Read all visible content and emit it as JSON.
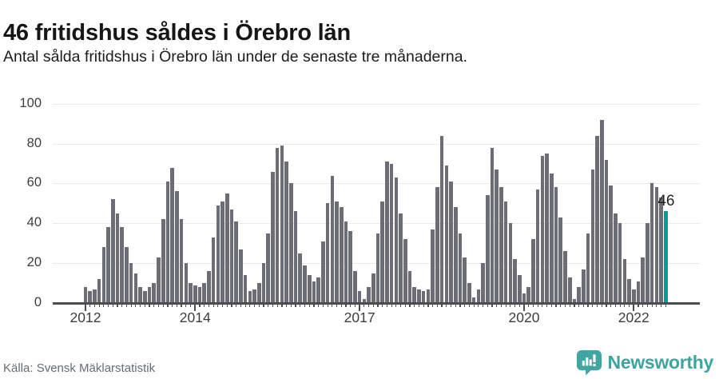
{
  "header": {
    "title": "46 fritidshus såldes i Örebro län",
    "subtitle": "Antal sålda fritidshus i Örebro län under de senaste tre månaderna."
  },
  "chart_data": {
    "type": "bar",
    "title": "46 fritidshus såldes i Örebro län",
    "subtitle": "Antal sålda fritidshus i Örebro län under de senaste tre månaderna.",
    "x_unit": "month",
    "start_month": "2012-01",
    "end_month": "2022-08",
    "ylim": [
      0,
      100
    ],
    "grid": true,
    "y_ticks": [
      0,
      20,
      40,
      60,
      80,
      100
    ],
    "x_ticks": [
      {
        "label": "2012",
        "month_index": 0
      },
      {
        "label": "2014",
        "month_index": 24
      },
      {
        "label": "2017",
        "month_index": 60
      },
      {
        "label": "2020",
        "month_index": 96
      },
      {
        "label": "2022",
        "month_index": 120
      }
    ],
    "values": [
      8,
      6,
      7,
      12,
      28,
      38,
      52,
      45,
      38,
      28,
      20,
      15,
      8,
      6,
      8,
      10,
      23,
      42,
      61,
      68,
      56,
      42,
      20,
      10,
      9,
      8,
      10,
      16,
      33,
      49,
      51,
      55,
      47,
      41,
      27,
      14,
      6,
      7,
      10,
      20,
      35,
      66,
      78,
      79,
      71,
      60,
      46,
      25,
      19,
      14,
      11,
      13,
      31,
      50,
      64,
      51,
      48,
      41,
      36,
      16,
      6,
      2,
      8,
      15,
      35,
      51,
      71,
      70,
      63,
      45,
      32,
      16,
      8,
      7,
      6,
      7,
      37,
      58,
      84,
      69,
      61,
      48,
      35,
      23,
      10,
      3,
      7,
      20,
      54,
      78,
      67,
      58,
      51,
      40,
      22,
      14,
      5,
      8,
      32,
      57,
      74,
      75,
      65,
      58,
      43,
      26,
      13,
      2,
      8,
      17,
      35,
      67,
      84,
      92,
      72,
      59,
      45,
      40,
      22,
      12,
      7,
      11,
      23,
      40,
      60,
      58,
      53,
      46
    ],
    "highlight_index": 127,
    "highlight_value": 46,
    "highlight_label": "46",
    "bar_color": "#6c6d76",
    "highlight_color": "#009e98"
  },
  "footer": {
    "source": "Källa: Svensk Mäklarstatistik",
    "brand": "Newsworthy",
    "brand_color": "#3fa39e"
  }
}
